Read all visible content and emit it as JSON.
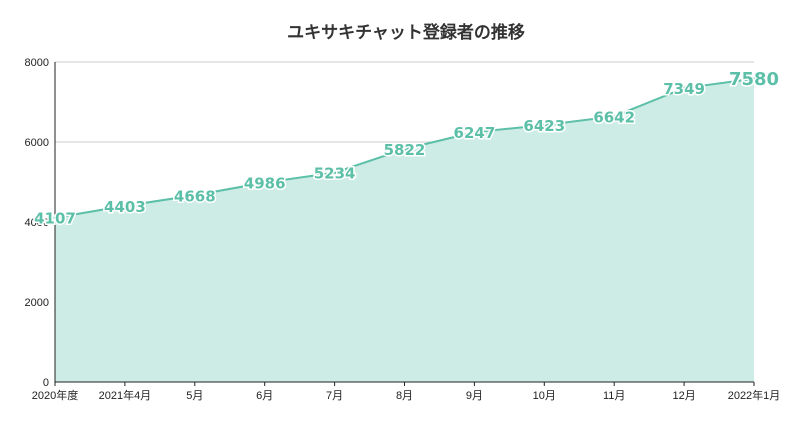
{
  "chart_data": {
    "type": "area",
    "title": "ユキサキチャット登録者の推移",
    "categories": [
      "2020年度",
      "2021年4月",
      "5月",
      "6月",
      "7月",
      "8月",
      "9月",
      "10月",
      "11月",
      "12月",
      "2022年1月"
    ],
    "series": [
      {
        "values": [
          4107,
          4403,
          4668,
          4986,
          5234,
          5822,
          6247,
          6423,
          6642,
          7349,
          7580
        ]
      }
    ],
    "ylim": [
      0,
      8000
    ],
    "yticks": [
      0,
      2000,
      4000,
      6000,
      8000
    ],
    "xlabel": "",
    "ylabel": "",
    "grid": true,
    "legend": "none",
    "colors": {
      "line": "#5cbfa7",
      "fill": "#cdece5",
      "grid": "#cccccc",
      "axis": "#222222"
    }
  }
}
